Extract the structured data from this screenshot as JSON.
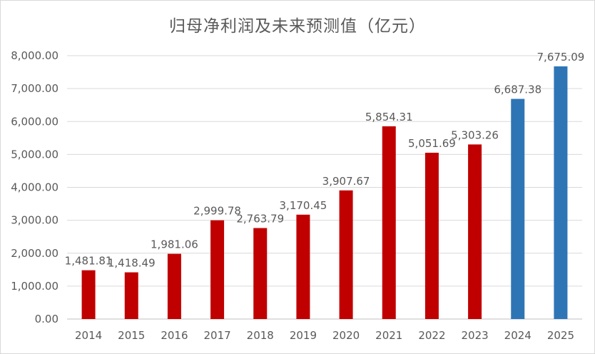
{
  "chart_data": {
    "type": "bar",
    "title": "归母净利润及未来预测值（亿元）",
    "xlabel": "",
    "ylabel": "",
    "ylim": [
      0,
      8000
    ],
    "y_ticks": [
      0,
      1000,
      2000,
      3000,
      4000,
      5000,
      6000,
      7000,
      8000
    ],
    "y_tick_labels": [
      "0.00",
      "1,000.00",
      "2,000.00",
      "3,000.00",
      "4,000.00",
      "5,000.00",
      "6,000.00",
      "7,000.00",
      "8,000.00"
    ],
    "grid": true,
    "legend": "none",
    "categories": [
      "2014",
      "2015",
      "2016",
      "2017",
      "2018",
      "2019",
      "2020",
      "2021",
      "2022",
      "2023",
      "2024",
      "2025"
    ],
    "values": [
      1481.81,
      1418.49,
      1981.06,
      2999.78,
      2763.79,
      3170.45,
      3907.67,
      5854.31,
      5051.69,
      5303.26,
      6687.38,
      7675.09
    ],
    "value_labels": [
      "1,481.81",
      "1,418.49",
      "1,981.06",
      "2,999.78",
      "2,763.79",
      "3,170.45",
      "3,907.67",
      "5,854.31",
      "5,051.69",
      "5,303.26",
      "6,687.38",
      "7,675.09"
    ],
    "bar_colors": [
      "#c00000",
      "#c00000",
      "#c00000",
      "#c00000",
      "#c00000",
      "#c00000",
      "#c00000",
      "#c00000",
      "#c00000",
      "#c00000",
      "#2e75b6",
      "#2e75b6"
    ]
  }
}
